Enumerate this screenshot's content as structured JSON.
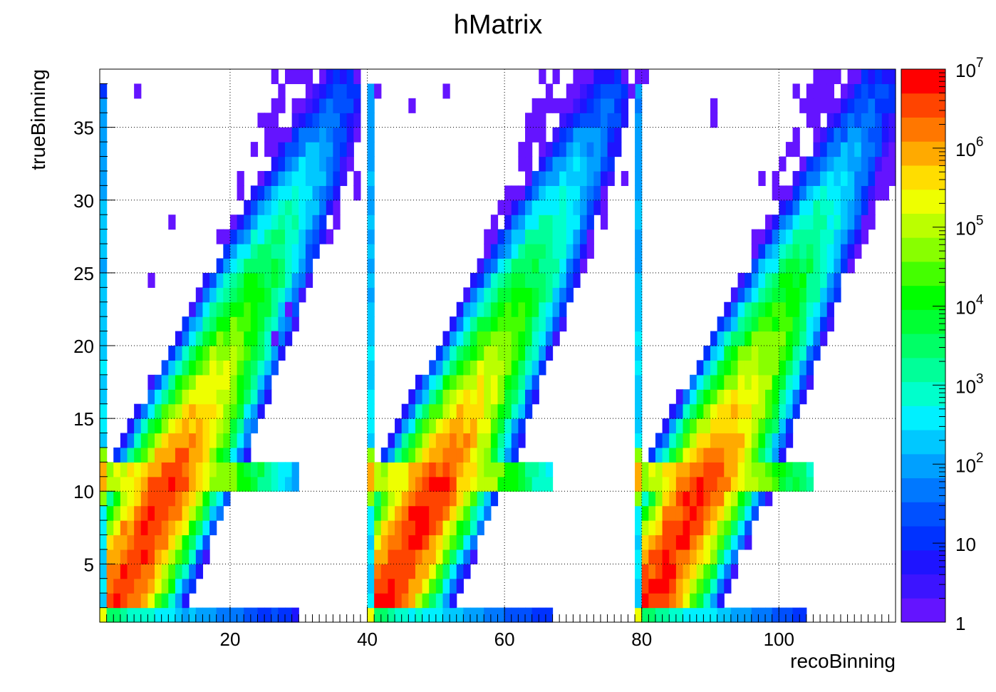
{
  "chart_data": {
    "type": "heatmap",
    "title": "hMatrix",
    "xlabel": "recoBinning",
    "ylabel": "trueBinning",
    "xlim": [
      1,
      117
    ],
    "ylim": [
      1,
      39
    ],
    "x_ticks": [
      "20",
      "40",
      "60",
      "80",
      "100"
    ],
    "y_ticks": [
      "5",
      "10",
      "15",
      "20",
      "25",
      "30",
      "35"
    ],
    "colorbar": {
      "scale": "log",
      "min": 1,
      "max": 10000000,
      "labels": [
        {
          "mantissa": "1",
          "exp": "",
          "value": 1
        },
        {
          "mantissa": "10",
          "exp": "",
          "value": 10
        },
        {
          "mantissa": "10",
          "exp": "2",
          "value": 100
        },
        {
          "mantissa": "10",
          "exp": "3",
          "value": 1000
        },
        {
          "mantissa": "10",
          "exp": "4",
          "value": 10000
        },
        {
          "mantissa": "10",
          "exp": "5",
          "value": 100000
        },
        {
          "mantissa": "10",
          "exp": "6",
          "value": 1000000
        },
        {
          "mantissa": "10",
          "exp": "7",
          "value": 10000000
        }
      ],
      "palette": [
        "#6414ff",
        "#3c14ff",
        "#1e14ff",
        "#0032ff",
        "#0050ff",
        "#0078ff",
        "#00a0ff",
        "#00c8ff",
        "#00f0ff",
        "#00ffcc",
        "#00ff99",
        "#00ff66",
        "#00ff33",
        "#00ff00",
        "#44ff00",
        "#88ff00",
        "#bbff00",
        "#eeff00",
        "#ffdd00",
        "#ffaa00",
        "#ff7700",
        "#ff4400",
        "#ff0000"
      ]
    },
    "grid": true,
    "blocks": [
      {
        "name": "block-1",
        "x_start": 1,
        "x_end": 39
      },
      {
        "name": "block-2",
        "x_start": 40,
        "x_end": 78
      },
      {
        "name": "block-3",
        "x_start": 79,
        "x_end": 117
      }
    ],
    "peak_log10": 6.7,
    "fixed_cells": [
      [
        6,
        37,
        1
      ],
      [
        11,
        28,
        1
      ],
      [
        8,
        24,
        1
      ],
      [
        28,
        22,
        1
      ],
      [
        26,
        20,
        1
      ],
      [
        41,
        37,
        1
      ],
      [
        46,
        36,
        1
      ],
      [
        51,
        37,
        1
      ],
      [
        64,
        34,
        1
      ],
      [
        90,
        36,
        1
      ],
      [
        90,
        35,
        1
      ],
      [
        102,
        37,
        1
      ],
      [
        107,
        37,
        1
      ],
      [
        97,
        31,
        1
      ],
      [
        38,
        38,
        1
      ],
      [
        77,
        38,
        1
      ],
      [
        78,
        37,
        1
      ],
      [
        79,
        38,
        1
      ],
      [
        80,
        38,
        1
      ]
    ]
  }
}
